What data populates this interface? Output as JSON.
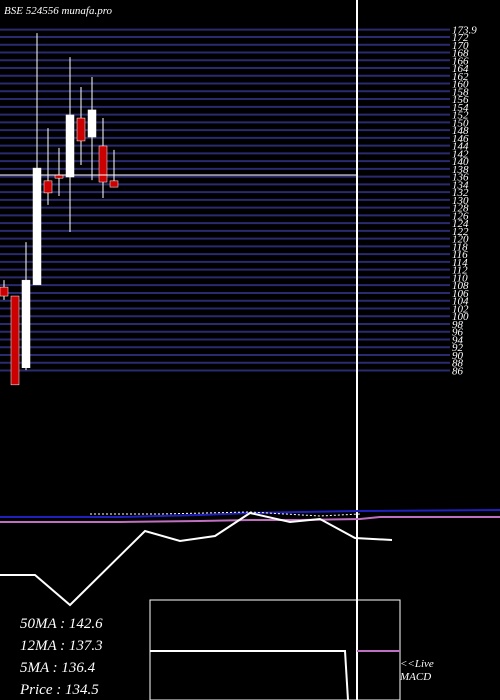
{
  "chart_data": {
    "type": "candlestick",
    "title": "BSE 524556 munafa.pro",
    "ylim": [
      82,
      180
    ],
    "yticks": [
      173.9,
      172,
      170,
      168,
      166,
      164,
      162,
      160,
      158,
      156,
      154,
      152,
      150,
      148,
      146,
      144,
      142,
      140,
      138,
      136,
      134,
      132,
      130,
      128,
      126,
      124,
      122,
      120,
      118,
      116,
      114,
      112,
      110,
      108,
      106,
      104,
      102,
      100,
      98,
      96,
      94,
      92,
      90,
      88,
      86
    ],
    "grid": true,
    "grid_color": "#2a2a6e",
    "up_color": "#ffffff",
    "down_color": "#cc0000",
    "open": [
      107.5,
      105.2,
      86.7,
      108.1,
      134.9,
      136.4,
      135.9,
      151.1,
      146.2,
      143.9,
      134.9
    ],
    "high": [
      109.3,
      105.2,
      119.1,
      173.0,
      148.5,
      143.4,
      166.8,
      159.1,
      161.7,
      151.1,
      142.9
    ],
    "low": [
      104.2,
      82.3,
      86.1,
      108.1,
      128.7,
      131.0,
      121.7,
      139.0,
      135.1,
      130.5,
      133.3
    ],
    "close": [
      105.2,
      82.3,
      109.3,
      138.2,
      131.8,
      135.6,
      151.9,
      145.2,
      153.2,
      134.6,
      133.3
    ],
    "legend": [
      "50MA : 142.6",
      "12MA : 137.3",
      "5MA : 136.4",
      "Price   : 134.5"
    ],
    "macd_label": "<<Live MACD"
  }
}
